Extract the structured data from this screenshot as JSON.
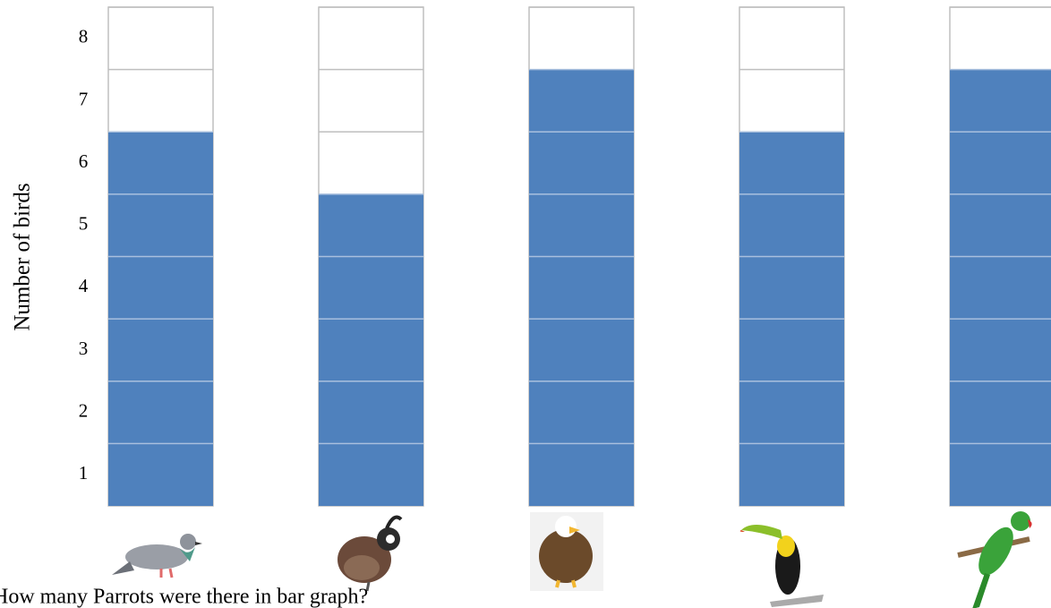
{
  "chart_data": {
    "type": "bar",
    "y_label": "Number of birds",
    "annotation": "How many Parrots were there in bar graph?",
    "categories": [
      null,
      null,
      null,
      null,
      null
    ],
    "values": [
      6,
      5,
      7,
      6,
      7
    ],
    "color": "#4f81bd",
    "ylim": [
      0,
      8
    ],
    "yticks": [
      1,
      2,
      3,
      4,
      5,
      6,
      7,
      8
    ],
    "grid": true
  }
}
